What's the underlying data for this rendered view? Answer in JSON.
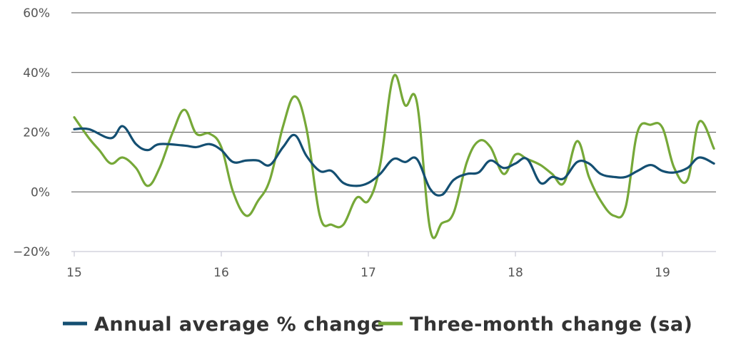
{
  "chart_data": {
    "type": "line",
    "title": "",
    "xlabel": "",
    "ylabel": "",
    "ylim": [
      -20,
      60
    ],
    "xlim": [
      15.0,
      19.35
    ],
    "yticks": [
      {
        "value": 60,
        "label": "60%"
      },
      {
        "value": 40,
        "label": "40%"
      },
      {
        "value": 20,
        "label": "20%"
      },
      {
        "value": 0,
        "label": "0%"
      },
      {
        "value": -20,
        "label": "−20%"
      }
    ],
    "xticks": [
      {
        "value": 15,
        "label": "15"
      },
      {
        "value": 16,
        "label": "16"
      },
      {
        "value": 17,
        "label": "17"
      },
      {
        "value": 18,
        "label": "18"
      },
      {
        "value": 19,
        "label": "19"
      }
    ],
    "grid": "horizontal",
    "legend": "bottom",
    "series": [
      {
        "name": "Annual average % change",
        "color": "#144f72",
        "points": [
          [
            15.0,
            21
          ],
          [
            15.1,
            21
          ],
          [
            15.25,
            18
          ],
          [
            15.33,
            22
          ],
          [
            15.42,
            16
          ],
          [
            15.5,
            14
          ],
          [
            15.58,
            16
          ],
          [
            15.75,
            15.5
          ],
          [
            15.83,
            15
          ],
          [
            15.92,
            16
          ],
          [
            16.0,
            14
          ],
          [
            16.08,
            10
          ],
          [
            16.17,
            10.5
          ],
          [
            16.25,
            10.5
          ],
          [
            16.33,
            9
          ],
          [
            16.42,
            15
          ],
          [
            16.5,
            19
          ],
          [
            16.58,
            12
          ],
          [
            16.67,
            7
          ],
          [
            16.75,
            7
          ],
          [
            16.83,
            3
          ],
          [
            16.92,
            2
          ],
          [
            17.0,
            3
          ],
          [
            17.08,
            6
          ],
          [
            17.17,
            11
          ],
          [
            17.25,
            10
          ],
          [
            17.33,
            11
          ],
          [
            17.42,
            1
          ],
          [
            17.5,
            -1
          ],
          [
            17.58,
            4
          ],
          [
            17.67,
            6
          ],
          [
            17.75,
            6.5
          ],
          [
            17.83,
            10.5
          ],
          [
            17.92,
            8
          ],
          [
            18.0,
            9.5
          ],
          [
            18.08,
            11
          ],
          [
            18.17,
            3
          ],
          [
            18.25,
            5
          ],
          [
            18.33,
            4.5
          ],
          [
            18.42,
            10
          ],
          [
            18.5,
            9.5
          ],
          [
            18.58,
            6
          ],
          [
            18.67,
            5
          ],
          [
            18.75,
            5
          ],
          [
            18.83,
            7
          ],
          [
            18.92,
            9
          ],
          [
            19.0,
            7
          ],
          [
            19.08,
            6.5
          ],
          [
            19.17,
            8
          ],
          [
            19.25,
            11.5
          ],
          [
            19.35,
            9.5
          ]
        ]
      },
      {
        "name": "Three-month change (sa)",
        "color": "#76a838",
        "points": [
          [
            15.0,
            25
          ],
          [
            15.1,
            18
          ],
          [
            15.17,
            14
          ],
          [
            15.25,
            9.5
          ],
          [
            15.33,
            11.5
          ],
          [
            15.42,
            8
          ],
          [
            15.5,
            2
          ],
          [
            15.58,
            8
          ],
          [
            15.67,
            20
          ],
          [
            15.75,
            27.5
          ],
          [
            15.83,
            19.5
          ],
          [
            15.92,
            19.5
          ],
          [
            16.0,
            15
          ],
          [
            16.08,
            0
          ],
          [
            16.17,
            -8
          ],
          [
            16.25,
            -3
          ],
          [
            16.33,
            4
          ],
          [
            16.42,
            22
          ],
          [
            16.5,
            32
          ],
          [
            16.58,
            21
          ],
          [
            16.67,
            -8
          ],
          [
            16.75,
            -11
          ],
          [
            16.83,
            -11
          ],
          [
            16.92,
            -2
          ],
          [
            17.0,
            -3
          ],
          [
            17.08,
            9
          ],
          [
            17.17,
            38.5
          ],
          [
            17.25,
            29
          ],
          [
            17.33,
            30
          ],
          [
            17.42,
            -12.5
          ],
          [
            17.5,
            -10.5
          ],
          [
            17.58,
            -7
          ],
          [
            17.67,
            10
          ],
          [
            17.75,
            17
          ],
          [
            17.83,
            15
          ],
          [
            17.92,
            6
          ],
          [
            18.0,
            12.5
          ],
          [
            18.08,
            11
          ],
          [
            18.17,
            9
          ],
          [
            18.25,
            6
          ],
          [
            18.33,
            3
          ],
          [
            18.42,
            17
          ],
          [
            18.5,
            5
          ],
          [
            18.58,
            -3
          ],
          [
            18.67,
            -8
          ],
          [
            18.75,
            -5
          ],
          [
            18.83,
            20
          ],
          [
            18.92,
            22.5
          ],
          [
            19.0,
            21.5
          ],
          [
            19.08,
            8
          ],
          [
            19.17,
            4
          ],
          [
            19.25,
            23.5
          ],
          [
            19.35,
            14.5
          ]
        ]
      }
    ]
  }
}
